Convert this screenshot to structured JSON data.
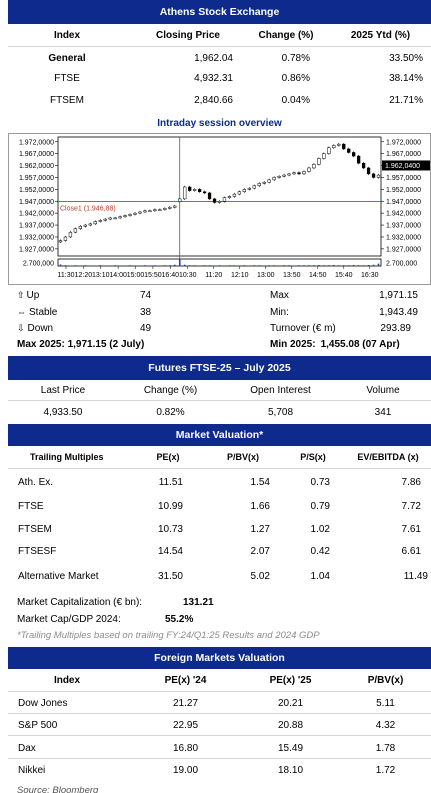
{
  "athens": {
    "title": "Athens Stock Exchange",
    "headers": [
      "Index",
      "Closing Price",
      "Change (%)",
      "2025 Ytd (%)"
    ],
    "rows": [
      {
        "index": "General",
        "close": "1,962.04",
        "change": "0.78%",
        "ytd": "33.50%"
      },
      {
        "index": "FTSE",
        "close": "4,932.31",
        "change": "0.86%",
        "ytd": "38.14%"
      },
      {
        "index": "FTSEM",
        "close": "2,840.66",
        "change": "0.04%",
        "ytd": "21.71%"
      }
    ]
  },
  "intraday": {
    "title": "Intraday session overview",
    "y_ticks_left": [
      "1.972,0000",
      "1.967,0000",
      "1.962,0000",
      "1.957,0000",
      "1.952,0000",
      "1.947,0000",
      "1.942,0000",
      "1.937,0000",
      "1.932,0000",
      "1.927,0000"
    ],
    "y_ticks_right": [
      "1.972,0000",
      "1.967,0000",
      "1.962,0400",
      "1.957,0000",
      "1.952,0000",
      "1.947,0000",
      "1.942,0000",
      "1.937,0000",
      "1.932,0000",
      "1.927,0000"
    ],
    "volume_tick_left": "2.700,000",
    "volume_tick_right": "2.700,000",
    "close_label": "Close1 (1.946,88)",
    "last_label": "1.962,0400",
    "x_ticks": [
      "11:30",
      "12:20",
      "13:10",
      "14:00",
      "15:00",
      "15:50",
      "16:40",
      "10:30",
      "11:20",
      "12:10",
      "13:00",
      "13:50",
      "14:50",
      "15:40",
      "16:30"
    ],
    "colors": {
      "close_line": "#c0392b",
      "candle_up": "#ffffff",
      "candle_down": "#000000",
      "volume": "#1f3fbf"
    }
  },
  "chart_data": {
    "type": "candlestick",
    "ylim": [
      1924.0,
      1974.0
    ],
    "reference_close": 1946.88,
    "last": 1962.04,
    "day1": [
      1930.5,
      1932.0,
      1934.0,
      1935.5,
      1936.5,
      1937.0,
      1937.5,
      1938.5,
      1939.0,
      1939.5,
      1940.0,
      1940.0,
      1940.5,
      1941.0,
      1941.5,
      1942.0,
      1942.5,
      1943.0,
      1943.0,
      1943.5,
      1943.5,
      1944.0,
      1944.5,
      1945.0
    ],
    "day2": [
      1948.0,
      1953.0,
      1951.5,
      1952.0,
      1951.0,
      1950.5,
      1948.0,
      1946.5,
      1947.0,
      1948.5,
      1949.0,
      1950.0,
      1951.0,
      1952.0,
      1952.5,
      1953.5,
      1954.5,
      1955.0,
      1956.0,
      1957.0,
      1957.5,
      1958.0,
      1958.5,
      1959.0,
      1958.5,
      1959.5,
      1961.0,
      1962.5,
      1965.0,
      1967.0,
      1969.5,
      1970.5,
      1971.0,
      1969.0,
      1967.5,
      1966.0,
      1963.0,
      1961.0,
      1958.5,
      1957.0,
      1958.0
    ],
    "volume_day1": [
      0.6,
      0.3,
      0.2,
      0.3,
      0.2,
      0.3,
      0.2,
      0.2,
      0.3,
      0.2,
      0.2,
      0.3,
      0.2,
      0.2,
      0.3,
      0.2,
      0.2,
      0.3,
      0.2,
      0.3,
      0.2,
      0.3,
      0.3,
      0.5
    ],
    "volume_day2": [
      2.7,
      0.5,
      0.3,
      0.3,
      0.2,
      0.3,
      0.3,
      0.2,
      0.3,
      0.2,
      0.3,
      0.3,
      0.2,
      0.3,
      0.2,
      0.3,
      0.3,
      0.2,
      0.3,
      0.3,
      0.2,
      0.3,
      0.3,
      0.2,
      0.3,
      0.3,
      0.3,
      0.3,
      0.4,
      0.3,
      0.3,
      0.4,
      0.3,
      0.3,
      0.3,
      0.4,
      0.3,
      0.3,
      0.4,
      0.5,
      0.9
    ]
  },
  "stats": {
    "up_label": "Up",
    "up_value": "74",
    "stable_label": "Stable",
    "stable_value": "38",
    "down_label": "Down",
    "down_value": "49",
    "max_label": "Max",
    "max_value": "1,971.15",
    "min_label": "Min:",
    "min_value": "1,943.49",
    "turnover_label": "Turnover (€ m)",
    "turnover_value": "293.89",
    "max2025": "Max 2025: 1,971.15 (2 July)",
    "min2025_label": "Min 2025:",
    "min2025_value": "1,455.08 (07 Apr)"
  },
  "futures": {
    "title": "Futures FTSE-25 – July 2025",
    "headers": [
      "Last Price",
      "Change (%)",
      "Open Interest",
      "Volume"
    ],
    "values": [
      "4,933.50",
      "0.82%",
      "5,708",
      "341"
    ]
  },
  "valuation": {
    "title": "Market Valuation*",
    "headers": [
      "Trailing Multiples",
      "PE(x)",
      "P/BV(x)",
      "P/S(x)",
      "EV/EBITDA (x)"
    ],
    "rows": [
      {
        "name": "Ath. Ex.",
        "pe": "11.51",
        "pbv": "1.54",
        "ps": "0.73",
        "ev": "7.86"
      },
      {
        "name": "FTSE",
        "pe": "10.99",
        "pbv": "1.66",
        "ps": "0.79",
        "ev": "7.72"
      },
      {
        "name": "FTSEM",
        "pe": "10.73",
        "pbv": "1.27",
        "ps": "1.02",
        "ev": "7.61"
      },
      {
        "name": "FTSESF",
        "pe": "14.54",
        "pbv": "2.07",
        "ps": "0.42",
        "ev": "6.61"
      },
      {
        "name": "Alternative Market",
        "pe": "31.50",
        "pbv": "5.02",
        "ps": "1.04",
        "ev": "11.49"
      }
    ],
    "cap_label": "Market Capitalization (€ bn):",
    "cap_value": "131.21",
    "gdp_label": "Market Cap/GDP 2024:",
    "gdp_value": "55.2%",
    "note": "*Trailing Multiples based on trailing FY:24/Q1:25 Results and 2024 GDP"
  },
  "foreign": {
    "title": "Foreign Markets Valuation",
    "headers": [
      "Index",
      "PE(x) '24",
      "PE(x) '25",
      "P/BV(x)"
    ],
    "rows": [
      {
        "index": "Dow Jones",
        "pe24": "21.27",
        "pe25": "20.21",
        "pbv": "5.11"
      },
      {
        "index": "S&P 500",
        "pe24": "22.95",
        "pe25": "20.88",
        "pbv": "4.32"
      },
      {
        "index": "Dax",
        "pe24": "16.80",
        "pe25": "15.49",
        "pbv": "1.78"
      },
      {
        "index": "Nikkei",
        "pe24": "19.00",
        "pe25": "18.10",
        "pbv": "1.72"
      }
    ],
    "source": "Source: Bloomberg"
  }
}
